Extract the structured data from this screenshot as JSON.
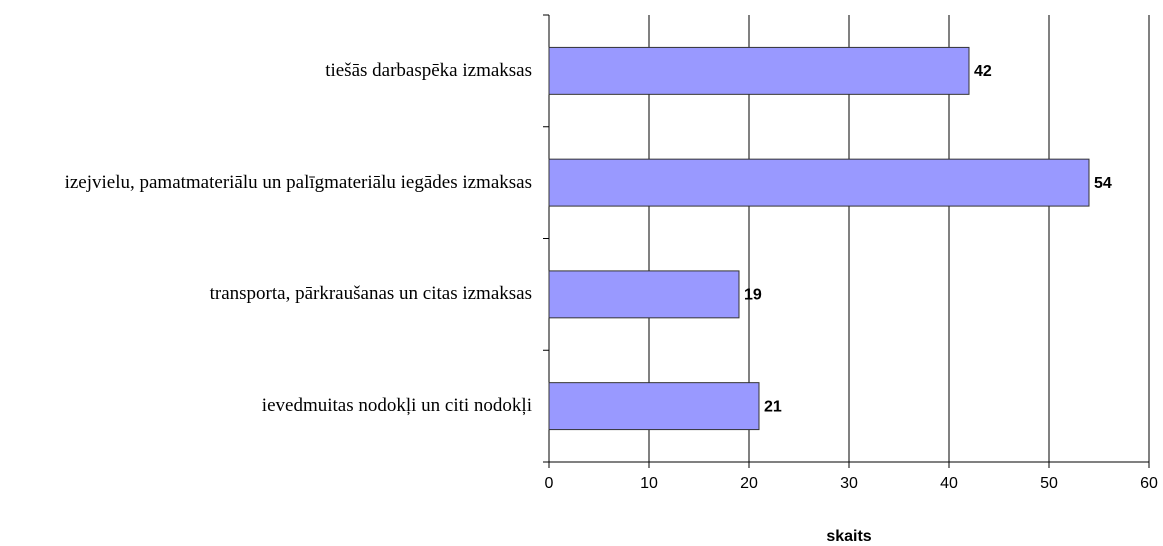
{
  "chart_data": {
    "type": "bar",
    "orientation": "horizontal",
    "categories": [
      "tiešās darbaspēka izmaksas",
      "izejvielu, pamatmateriālu un palīgmateriālu iegādes izmaksas",
      "transporta, pārkraušanas un citas izmaksas",
      "ievedmuitas nodokļi un citi nodokļi"
    ],
    "values": [
      42,
      54,
      19,
      21
    ],
    "color": "#9999ff",
    "xlabel": "skaits",
    "xlim": [
      0,
      60
    ],
    "xticks": [
      0,
      10,
      20,
      30,
      40,
      50,
      60
    ],
    "grid": true
  }
}
